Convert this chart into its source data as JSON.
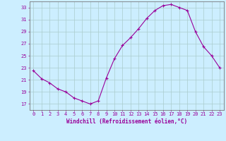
{
  "x": [
    0,
    1,
    2,
    3,
    4,
    5,
    6,
    7,
    8,
    9,
    10,
    11,
    12,
    13,
    14,
    15,
    16,
    17,
    18,
    19,
    20,
    21,
    22,
    23
  ],
  "y": [
    22.5,
    21.2,
    20.5,
    19.5,
    19.0,
    18.0,
    17.5,
    17.0,
    17.5,
    21.3,
    24.5,
    26.7,
    28.0,
    29.5,
    31.2,
    32.5,
    33.3,
    33.5,
    33.0,
    32.5,
    29.0,
    26.5,
    25.0,
    23.0
  ],
  "line_color": "#990099",
  "marker": "+",
  "marker_size": 3,
  "bg_color": "#cceeff",
  "grid_color": "#aacccc",
  "xlabel": "Windchill (Refroidissement éolien,°C)",
  "xlim": [
    -0.5,
    23.5
  ],
  "ylim": [
    16,
    34
  ],
  "yticks": [
    17,
    19,
    21,
    23,
    25,
    27,
    29,
    31,
    33
  ],
  "xticks": [
    0,
    1,
    2,
    3,
    4,
    5,
    6,
    7,
    8,
    9,
    10,
    11,
    12,
    13,
    14,
    15,
    16,
    17,
    18,
    19,
    20,
    21,
    22,
    23
  ],
  "tick_color": "#990099",
  "label_color": "#990099",
  "axis_color": "#777777",
  "tick_fontsize": 5.0,
  "xlabel_fontsize": 5.5,
  "linewidth": 0.8
}
